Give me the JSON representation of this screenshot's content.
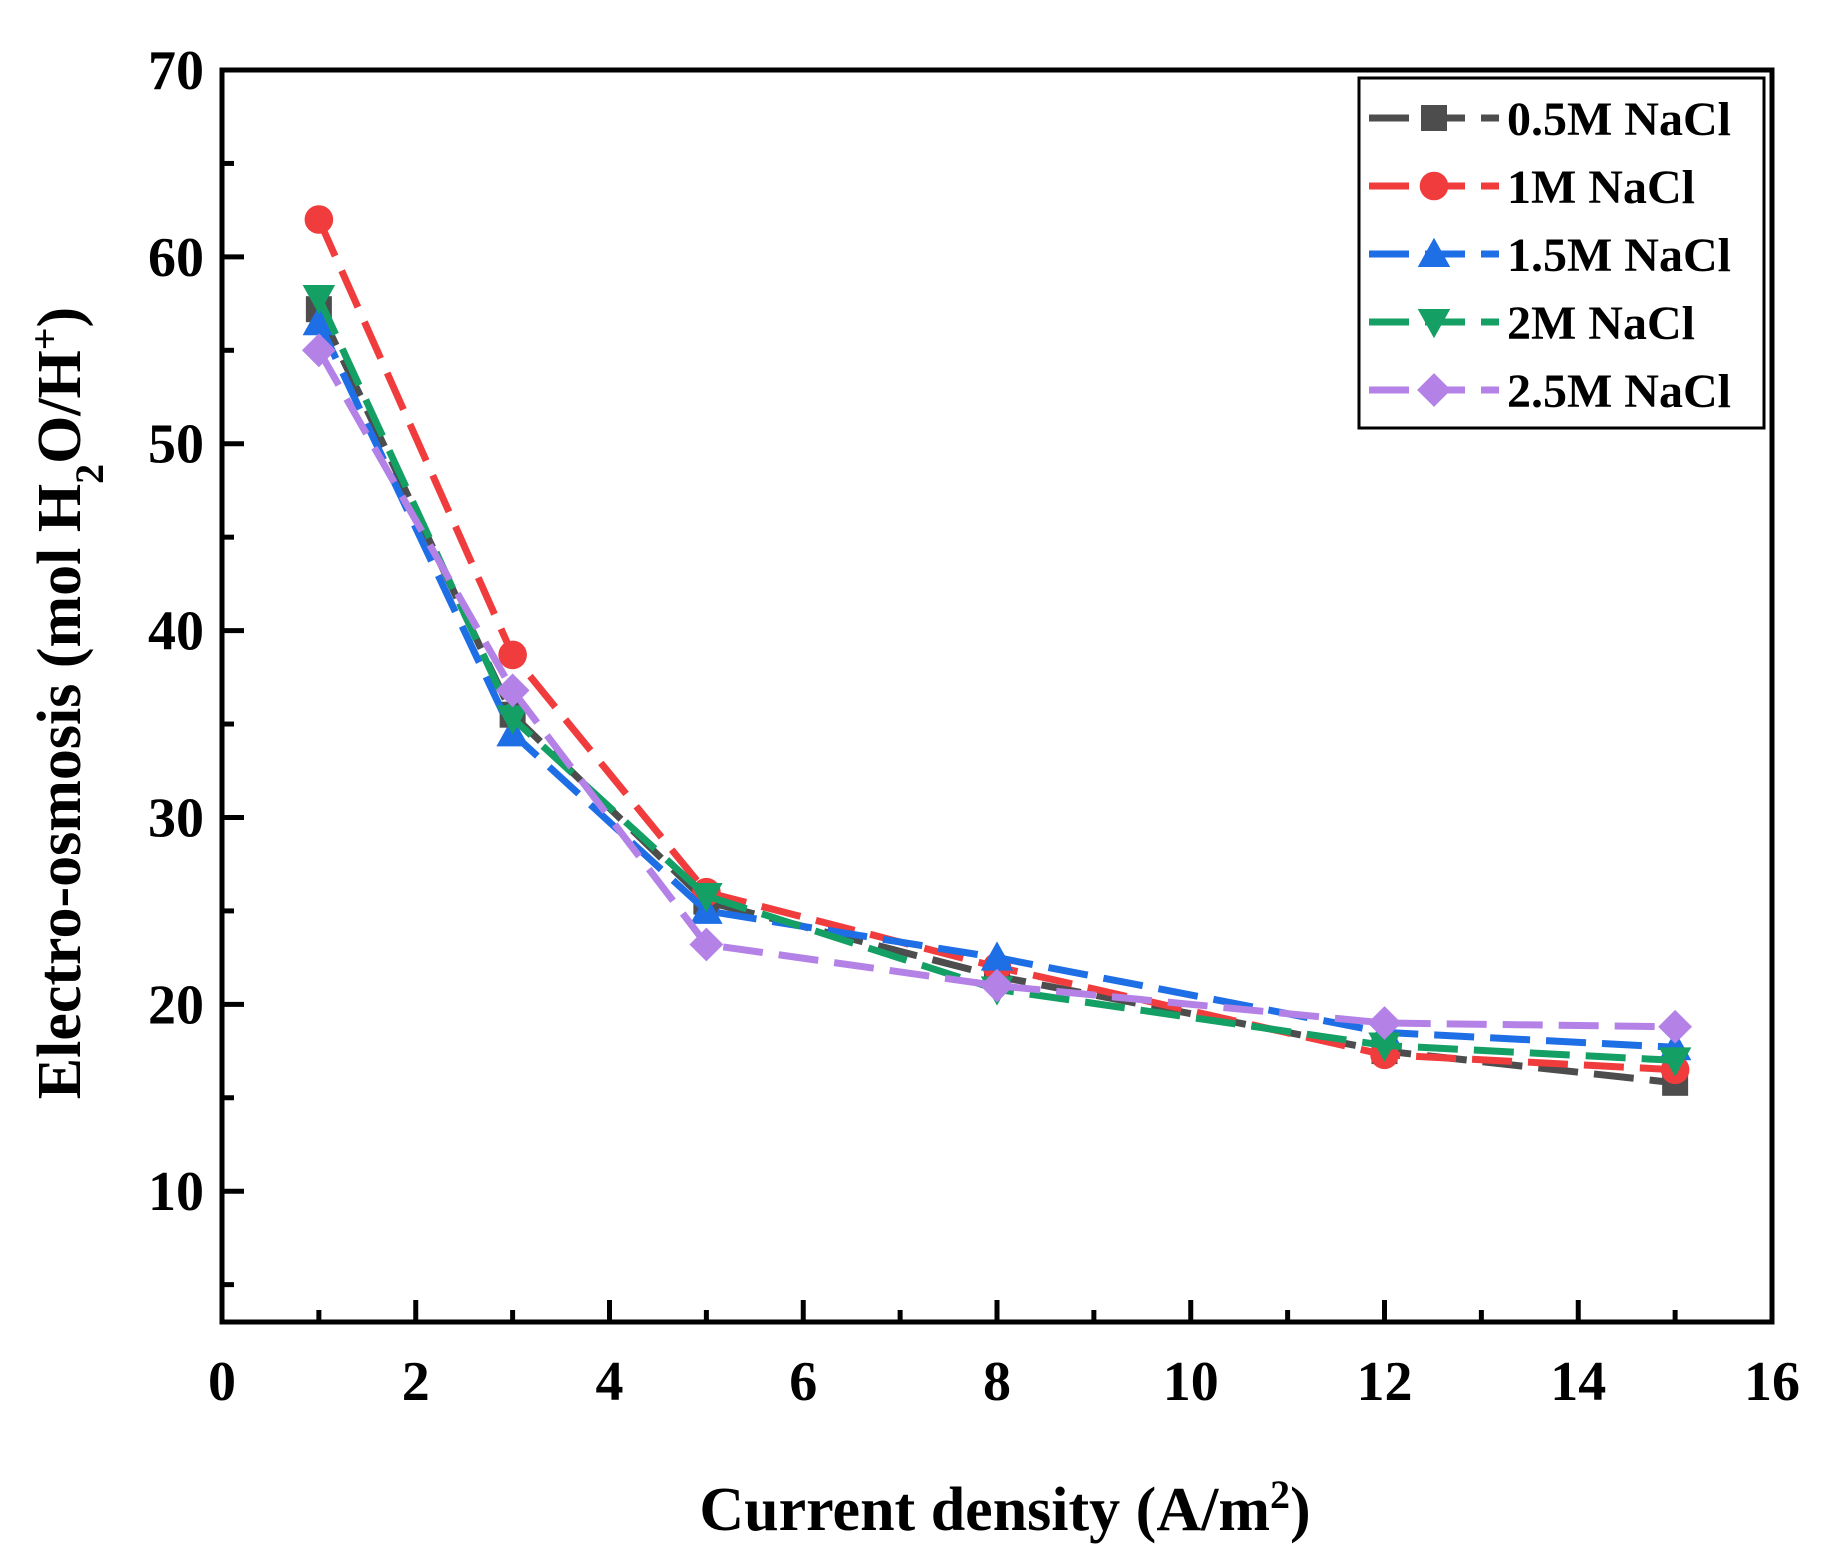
{
  "chart_data": {
    "type": "line",
    "title": "",
    "xlabel": {
      "main": "Current density (A/m",
      "sup": "2",
      "close": ")"
    },
    "ylabel": {
      "p1": "Electro-osmosis (mol H",
      "sub": "2",
      "p2": "O/H",
      "sup": "+",
      "p3": ")"
    },
    "xlim": [
      0,
      16
    ],
    "ylim": [
      3,
      70
    ],
    "xticks": [
      0,
      2,
      4,
      6,
      8,
      10,
      12,
      14,
      16
    ],
    "yticks": [
      10,
      20,
      30,
      40,
      50,
      60,
      70
    ],
    "grid": false,
    "legend_position": "top-right",
    "x": [
      1,
      3,
      5,
      8,
      12,
      15
    ],
    "series": [
      {
        "name": "0.5M NaCl",
        "color": "#4d4d4d",
        "marker": "square",
        "values": [
          57.2,
          35.5,
          25.5,
          21.5,
          17.5,
          15.8
        ]
      },
      {
        "name": "1M NaCl",
        "color": "#f03c3c",
        "marker": "circle",
        "values": [
          62.0,
          38.7,
          26.0,
          22.0,
          17.3,
          16.5
        ]
      },
      {
        "name": "1.5M NaCl",
        "color": "#1e6ee6",
        "marker": "triangle-up",
        "values": [
          56.5,
          34.5,
          25.0,
          22.5,
          18.5,
          17.7
        ]
      },
      {
        "name": "2M NaCl",
        "color": "#14a064",
        "marker": "triangle-down",
        "values": [
          57.8,
          35.3,
          25.8,
          20.8,
          17.8,
          17.0
        ]
      },
      {
        "name": "2.5M NaCl",
        "color": "#b482e6",
        "marker": "diamond",
        "values": [
          55.0,
          36.8,
          23.2,
          21.0,
          19.0,
          18.8
        ]
      }
    ]
  }
}
